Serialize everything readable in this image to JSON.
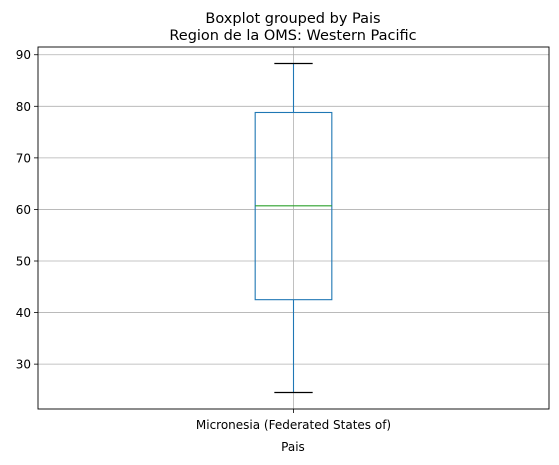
{
  "chart_data": {
    "type": "boxplot",
    "suptitle": "Boxplot grouped by Pais",
    "title": "Region de la OMS: Western Pacific",
    "xlabel": "Pais",
    "ylabel": "",
    "categories": [
      "Micronesia (Federated States of)"
    ],
    "boxes": [
      {
        "category": "Micronesia (Federated States of)",
        "whisker_low": 24.5,
        "q1": 42.5,
        "median": 60.7,
        "q3": 78.8,
        "whisker_high": 88.3
      }
    ],
    "ylim": [
      21.3,
      91.5
    ],
    "yticks": [
      30,
      40,
      50,
      60,
      70,
      80,
      90
    ],
    "grid": true,
    "colors": {
      "box": "#1f77b4",
      "median": "#2ca02c",
      "caps": "#000000",
      "grid": "#b0b0b0"
    }
  }
}
